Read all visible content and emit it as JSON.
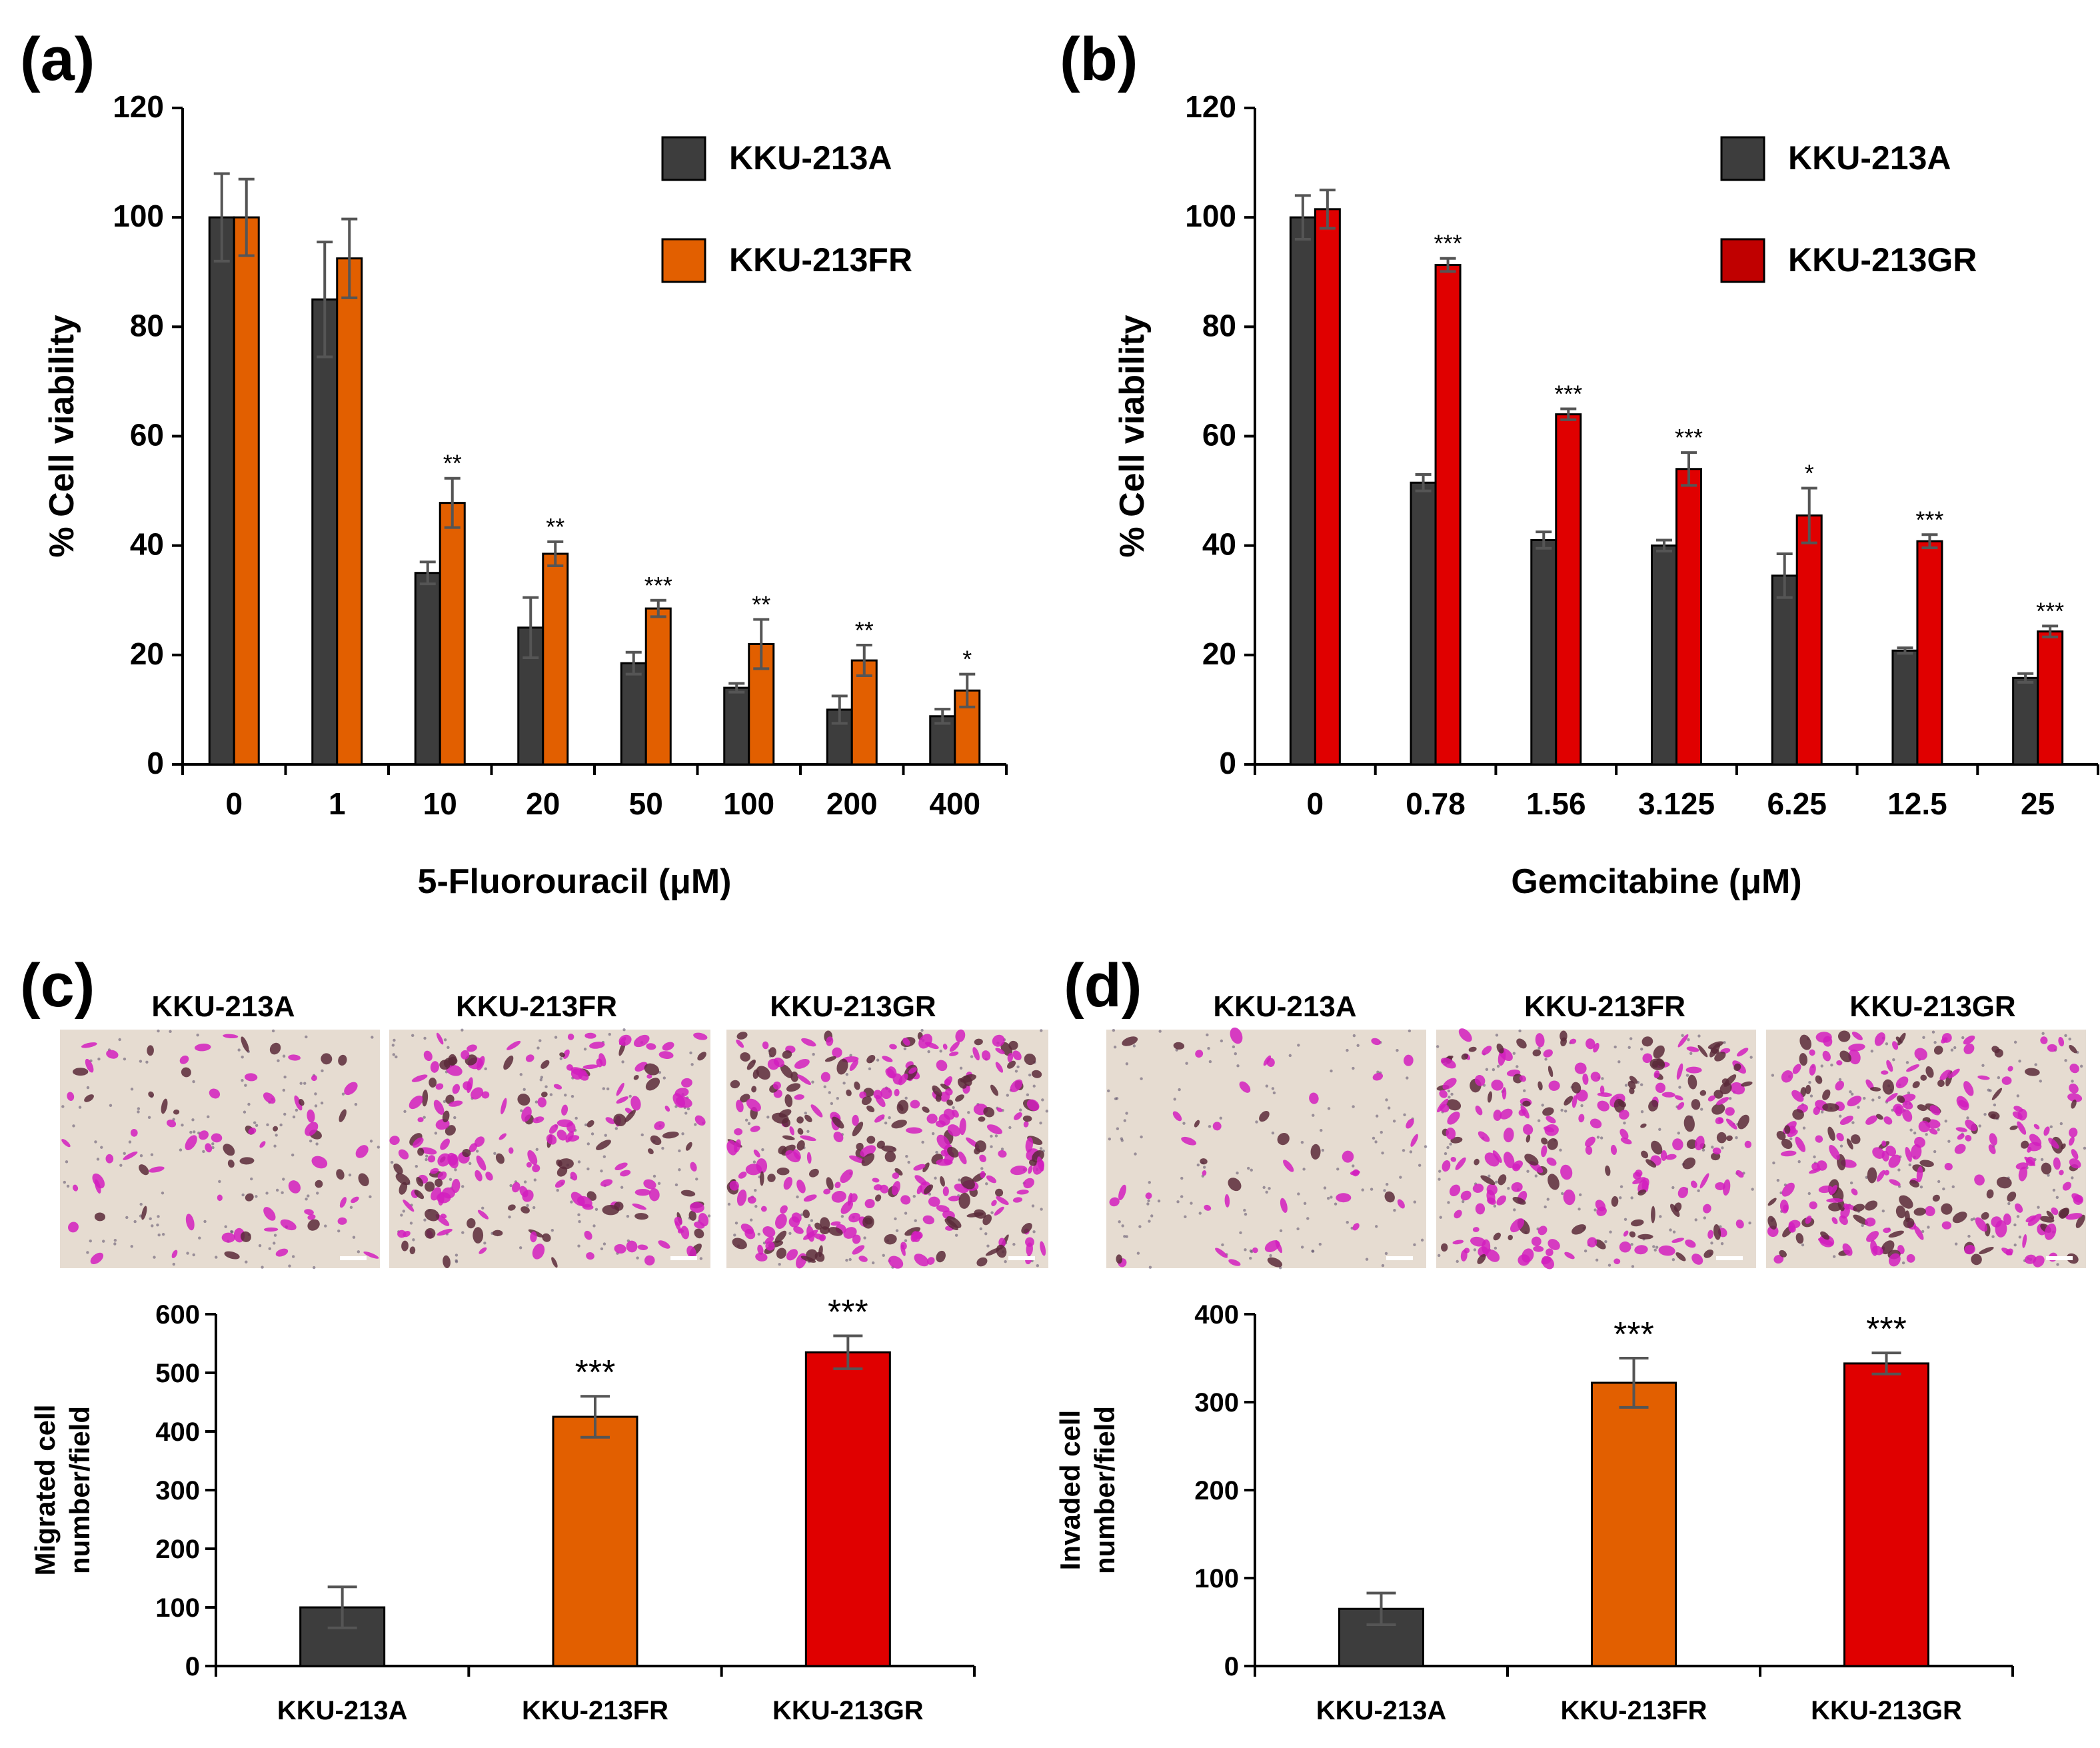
{
  "colors": {
    "kku213a": "#3d3d3d",
    "kku213fr": "#e25f00",
    "kku213gr": "#e00000",
    "legend_gr": "#c00000",
    "axis": "#000000",
    "error": "#555555",
    "micrograph_bg": "#e6dcd1",
    "stain": "#d21fbe",
    "stain_dark": "#5a2a3a"
  },
  "panels": {
    "a": {
      "label": "(a)"
    },
    "b": {
      "label": "(b)"
    },
    "c": {
      "label": "(c)",
      "image_labels": [
        "KKU-213A",
        "KKU-213FR",
        "KKU-213GR"
      ]
    },
    "d": {
      "label": "(d)",
      "image_labels": [
        "KKU-213A",
        "KKU-213FR",
        "KKU-213GR"
      ]
    }
  },
  "chart_data": [
    {
      "id": "a",
      "type": "bar",
      "title": "",
      "xlabel": "5-Fluorouracil (μM)",
      "ylabel": "% Cell viability",
      "ylim": [
        0,
        120
      ],
      "yticks": [
        0,
        20,
        40,
        60,
        80,
        100,
        120
      ],
      "categories": [
        "0",
        "1",
        "10",
        "20",
        "50",
        "100",
        "200",
        "400"
      ],
      "legend": "top-right",
      "series": [
        {
          "name": "KKU-213A",
          "color": "#3d3d3d",
          "values": [
            100,
            85,
            35,
            25,
            18.5,
            14,
            10,
            8.8
          ],
          "errors": [
            8,
            10.5,
            2,
            5.5,
            2,
            0.8,
            2.5,
            1.3
          ],
          "sig": [
            "",
            "",
            "",
            "",
            "",
            "",
            "",
            ""
          ]
        },
        {
          "name": "KKU-213FR",
          "color": "#e25f00",
          "values": [
            100,
            92.5,
            47.8,
            38.5,
            28.5,
            22,
            19,
            13.5
          ],
          "errors": [
            7,
            7.2,
            4.5,
            2.2,
            1.5,
            4.5,
            2.8,
            3
          ],
          "sig": [
            "",
            "",
            "**",
            "**",
            "***",
            "**",
            "**",
            "*"
          ]
        }
      ]
    },
    {
      "id": "b",
      "type": "bar",
      "title": "",
      "xlabel": "Gemcitabine (μM)",
      "ylabel": "% Cell viability",
      "ylim": [
        0,
        120
      ],
      "yticks": [
        0,
        20,
        40,
        60,
        80,
        100,
        120
      ],
      "categories": [
        "0",
        "0.78",
        "1.56",
        "3.125",
        "6.25",
        "12.5",
        "25"
      ],
      "legend": "top-right",
      "series": [
        {
          "name": "KKU-213A",
          "color": "#3d3d3d",
          "values": [
            100,
            51.5,
            41,
            40,
            34.5,
            20.8,
            15.8
          ],
          "errors": [
            4,
            1.5,
            1.5,
            1,
            4,
            0.5,
            0.8
          ],
          "sig": [
            "",
            "",
            "",
            "",
            "",
            "",
            ""
          ]
        },
        {
          "name": "KKU-213GR",
          "color": "#e00000",
          "legend_color": "#c00000",
          "values": [
            101.5,
            91.3,
            64,
            54,
            45.5,
            40.8,
            24.3
          ],
          "errors": [
            3.5,
            1.2,
            1,
            3,
            5,
            1.2,
            1
          ],
          "sig": [
            "",
            "***",
            "***",
            "***",
            "*",
            "***",
            "***"
          ]
        }
      ]
    },
    {
      "id": "c",
      "type": "bar",
      "title": "",
      "xlabel": "",
      "ylabel": "Migrated cell number/field",
      "ylabel_lines": [
        "Migrated cell",
        "number/field"
      ],
      "ylim": [
        0,
        600
      ],
      "yticks": [
        0,
        100,
        200,
        300,
        400,
        500,
        600
      ],
      "categories": [
        "KKU-213A",
        "KKU-213FR",
        "KKU-213GR"
      ],
      "colors": [
        "#3d3d3d",
        "#e25f00",
        "#e00000"
      ],
      "values": [
        100,
        425,
        535
      ],
      "errors": [
        35,
        35,
        28
      ],
      "sig": [
        "",
        "***",
        "***"
      ]
    },
    {
      "id": "d",
      "type": "bar",
      "title": "",
      "xlabel": "",
      "ylabel": "Invaded cell number/field",
      "ylabel_lines": [
        "Invaded cell",
        "number/field"
      ],
      "ylim": [
        0,
        400
      ],
      "yticks": [
        0,
        100,
        200,
        300,
        400
      ],
      "categories": [
        "KKU-213A",
        "KKU-213FR",
        "KKU-213GR"
      ],
      "colors": [
        "#3d3d3d",
        "#e25f00",
        "#e00000"
      ],
      "values": [
        65,
        322,
        344
      ],
      "errors": [
        18,
        28,
        12
      ],
      "sig": [
        "",
        "***",
        "***"
      ]
    }
  ]
}
